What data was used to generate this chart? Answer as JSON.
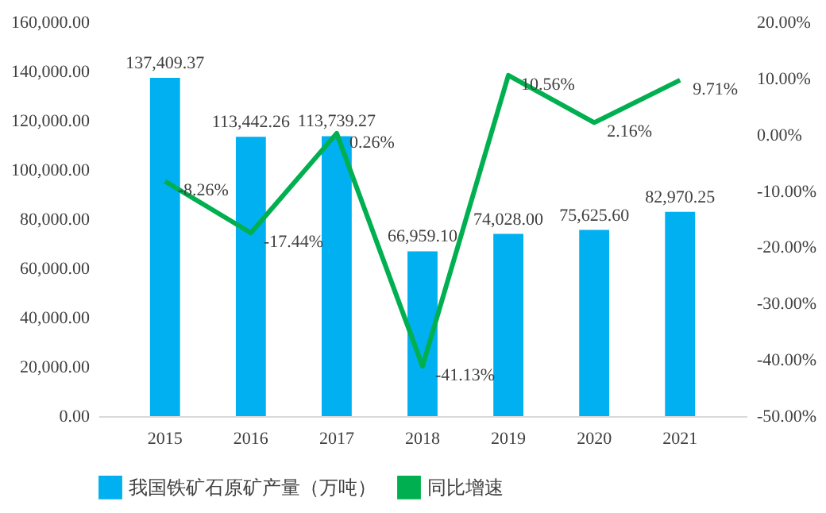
{
  "chart_data": {
    "type": "bar",
    "categories": [
      "2015",
      "2016",
      "2017",
      "2018",
      "2019",
      "2020",
      "2021"
    ],
    "series": [
      {
        "name": "我国铁矿石原矿产量（万吨）",
        "color": "#00b0f0",
        "values": [
          137409.37,
          113442.26,
          113739.27,
          66959.1,
          74028.0,
          75625.6,
          82970.25
        ],
        "value_labels": [
          "137,409.37",
          "113,442.26",
          "113,739.27",
          "66,959.10",
          "74,028.00",
          "75,625.60",
          "82,970.25"
        ]
      },
      {
        "name": "同比增速",
        "type": "line",
        "axis": "y2",
        "color": "#00b050",
        "values": [
          -8.26,
          -17.44,
          0.26,
          -41.13,
          10.56,
          2.16,
          9.71
        ],
        "value_labels": [
          "-8.26%",
          "-17.44%",
          "0.26%",
          "-41.13%",
          "10.56%",
          "2.16%",
          "9.71%"
        ]
      }
    ],
    "ylim": [
      0,
      160000
    ],
    "yticks": [
      {
        "value": 0,
        "label": "0.00"
      },
      {
        "value": 20000,
        "label": "20,000.00"
      },
      {
        "value": 40000,
        "label": "40,000.00"
      },
      {
        "value": 60000,
        "label": "60,000.00"
      },
      {
        "value": 80000,
        "label": "80,000.00"
      },
      {
        "value": 100000,
        "label": "100,000.00"
      },
      {
        "value": 120000,
        "label": "120,000.00"
      },
      {
        "value": 140000,
        "label": "140,000.00"
      },
      {
        "value": 160000,
        "label": "160,000.00"
      }
    ],
    "y2lim": [
      -50,
      20
    ],
    "y2ticks": [
      {
        "value": -50,
        "label": "-50.00%"
      },
      {
        "value": -40,
        "label": "-40.00%"
      },
      {
        "value": -30,
        "label": "-30.00%"
      },
      {
        "value": -20,
        "label": "-20.00%"
      },
      {
        "value": -10,
        "label": "-10.00%"
      },
      {
        "value": 0,
        "label": "0.00%"
      },
      {
        "value": 10,
        "label": "10.00%"
      },
      {
        "value": 20,
        "label": "20.00%"
      }
    ],
    "legend": "bottom"
  }
}
